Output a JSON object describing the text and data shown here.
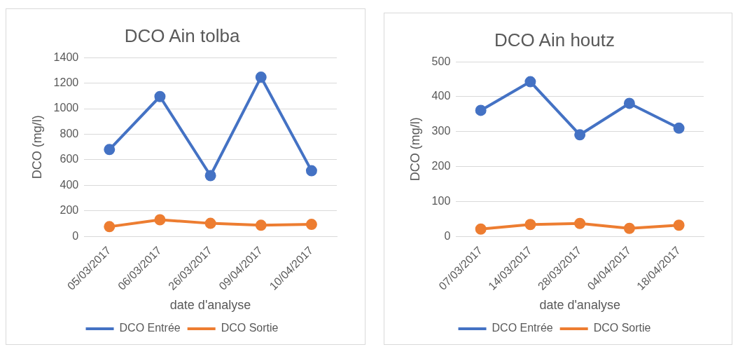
{
  "chart_data": [
    {
      "type": "line",
      "title": "DCO Ain tolba",
      "xlabel": "date d'analyse",
      "ylabel": "DCO (mg/l)",
      "categories": [
        "05/03/2017",
        "06/03/2017",
        "26/03/2017",
        "09/04/2017",
        "10/04/2017"
      ],
      "series": [
        {
          "name": "DCO Entrée",
          "color": "#4472c4",
          "values": [
            680,
            1095,
            476,
            1247,
            514
          ]
        },
        {
          "name": "DCO Sortie",
          "color": "#ed7d31",
          "values": [
            76,
            130,
            102,
            87,
            94
          ]
        }
      ],
      "ylim": [
        0,
        1400
      ],
      "yticks": [
        0,
        200,
        400,
        600,
        800,
        1000,
        1200,
        1400
      ],
      "grid": "y",
      "legend": "bottom",
      "marker": "circle",
      "line_style": "solid"
    },
    {
      "type": "line",
      "title": "DCO Ain houtz",
      "xlabel": "date d'analyse",
      "ylabel": "DCO (mg/l)",
      "categories": [
        "07/03/2017",
        "14/03/2017",
        "28/03/2017",
        "04/04/2017",
        "18/04/2017"
      ],
      "series": [
        {
          "name": "DCO Entrée",
          "color": "#4472c4",
          "values": [
            361,
            443,
            291,
            381,
            310
          ]
        },
        {
          "name": "DCO Sortie",
          "color": "#ed7d31",
          "values": [
            21,
            34,
            37,
            23,
            32
          ]
        }
      ],
      "ylim": [
        0,
        500
      ],
      "yticks": [
        0,
        100,
        200,
        300,
        400,
        500
      ],
      "grid": "y",
      "legend": "bottom",
      "marker": "circle",
      "line_style": "solid"
    }
  ]
}
